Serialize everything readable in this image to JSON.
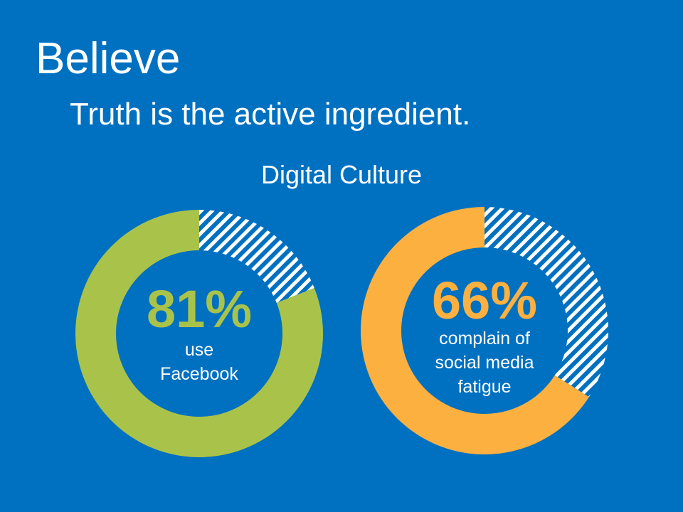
{
  "slide": {
    "title": "Believe",
    "subtitle": "Truth is the active ingredient."
  },
  "chart_data": {
    "type": "pie",
    "title": "Digital Culture",
    "charts": [
      {
        "value": 81,
        "value_label": "81%",
        "description_lines": [
          "use",
          "Facebook"
        ],
        "color": "#a9c34a"
      },
      {
        "value": 66,
        "value_label": "66%",
        "description_lines": [
          "complain of",
          "social media",
          "fatigue"
        ],
        "color": "#fbb040"
      }
    ],
    "remainder_style": "hatched",
    "remainder_color": "#ffffff"
  },
  "colors": {
    "background": "#0070c0",
    "text": "#ffffff"
  }
}
